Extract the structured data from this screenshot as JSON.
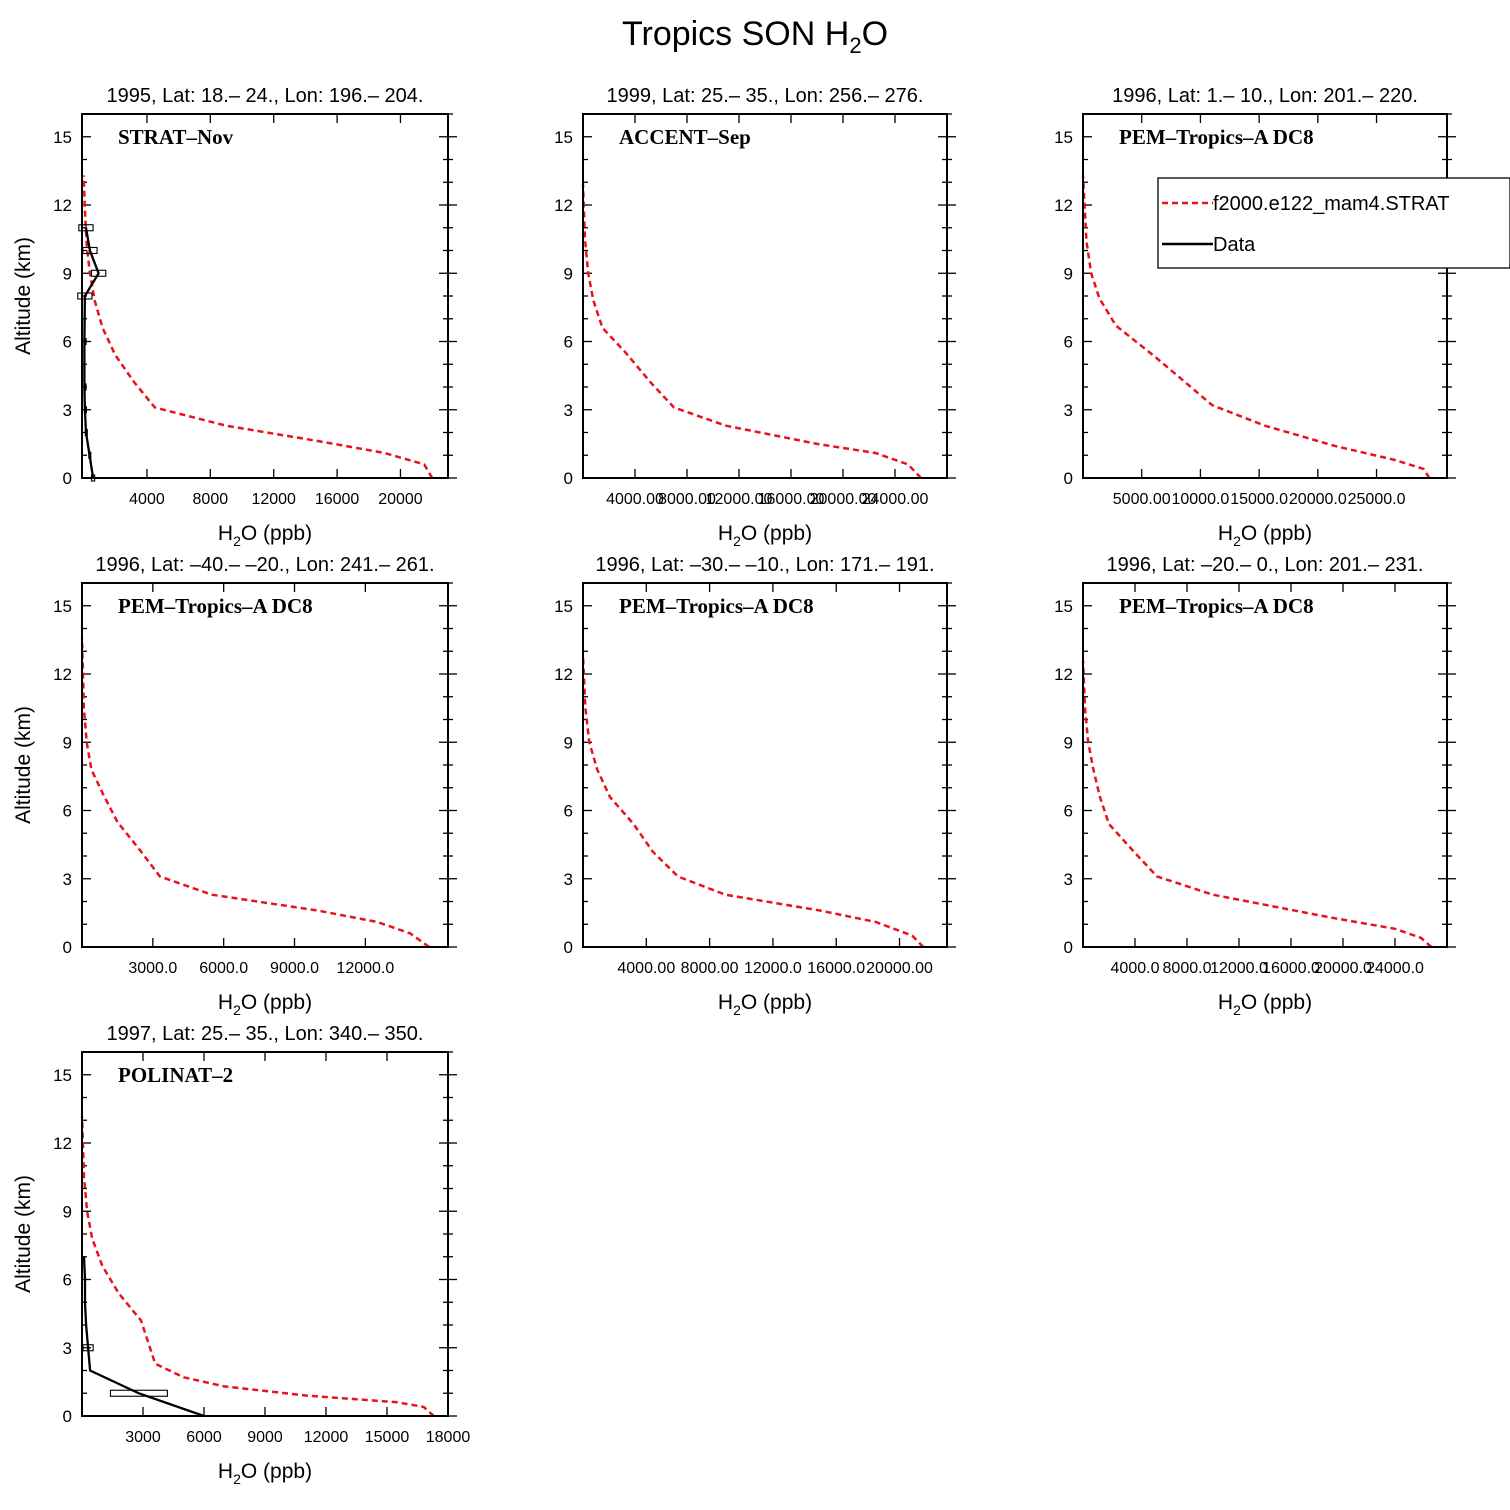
{
  "figure": {
    "title_main": "Tropics SON H",
    "title_sub": "2",
    "title_end": "O"
  },
  "legend": {
    "model_label": "f2000.e122_mam4.STRAT",
    "data_label": "Data",
    "colors": {
      "model": "#e8131a",
      "data": "#000000"
    }
  },
  "chart_data": [
    {
      "type": "line",
      "subtitle": "1995, Lat: 18.– 24., Lon: 196.– 204.",
      "campaign": "STRAT–Nov",
      "xlabel": "H2O (ppb)",
      "ylabel": "Altitude (km)",
      "xlim": [
        -100,
        23000
      ],
      "ylim": [
        0,
        16
      ],
      "xticks": [
        4000,
        8000,
        12000,
        16000,
        20000
      ],
      "xticklabels": [
        "4000",
        "8000",
        "12000",
        "16000",
        "20000"
      ],
      "yticks": [
        0,
        3,
        6,
        9,
        12,
        15
      ],
      "yticklabels": [
        "0",
        "3",
        "6",
        "9",
        "12",
        "15"
      ],
      "series": [
        {
          "name": "f2000.e122_mam4.STRAT",
          "x": [
            22000,
            21500,
            19000,
            15000,
            9000,
            4500,
            3200,
            2000,
            1200,
            700,
            400,
            200,
            100,
            0
          ],
          "y": [
            0,
            0.6,
            1.1,
            1.6,
            2.3,
            3.1,
            4.2,
            5.4,
            6.6,
            7.8,
            9,
            10.2,
            11.5,
            13.3
          ]
        },
        {
          "name": "Data",
          "x": [
            600,
            380,
            150,
            80,
            50,
            50,
            80,
            950,
            400,
            150
          ],
          "y": [
            0,
            1,
            2,
            3,
            4,
            6,
            8,
            9,
            10,
            11
          ],
          "err": [
            200,
            100,
            80,
            50,
            40,
            40,
            900,
            900,
            900,
            900
          ]
        }
      ]
    },
    {
      "type": "line",
      "subtitle": "1999, Lat: 25.– 35., Lon: 256.– 276.",
      "campaign": "ACCENT–Sep",
      "xlabel": "H2O (ppb)",
      "ylabel": "",
      "xlim": [
        0,
        28000
      ],
      "ylim": [
        0,
        16
      ],
      "xticks": [
        4000,
        8000,
        12000,
        16000,
        20000,
        24000
      ],
      "xticklabels": [
        "4000.00",
        "8000.00",
        "12000.00",
        "16000.00",
        "20000.00",
        "24000.00"
      ],
      "yticks": [
        0,
        3,
        6,
        9,
        12,
        15
      ],
      "yticklabels": [
        "0",
        "3",
        "6",
        "9",
        "12",
        "15"
      ],
      "series": [
        {
          "name": "f2000.e122_mam4.STRAT",
          "x": [
            26000,
            25000,
            22500,
            18000,
            11000,
            7000,
            5200,
            3300,
            1500,
            800,
            400,
            150,
            0
          ],
          "y": [
            0,
            0.6,
            1.1,
            1.5,
            2.3,
            3.1,
            4.2,
            5.5,
            6.6,
            7.8,
            9,
            10.5,
            12.9
          ]
        }
      ]
    },
    {
      "type": "line",
      "subtitle": "1996, Lat: 1.– 10., Lon: 201.– 220.",
      "campaign": "PEM–Tropics–A DC8",
      "xlabel": "H2O (ppb)",
      "ylabel": "",
      "xlim": [
        0,
        31000
      ],
      "ylim": [
        0,
        16
      ],
      "xticks": [
        5000,
        10000,
        15000,
        20000,
        25000
      ],
      "xticklabels": [
        "5000.00",
        "10000.0",
        "15000.0",
        "20000.0",
        "25000.0"
      ],
      "yticks": [
        0,
        3,
        6,
        9,
        12,
        15
      ],
      "yticklabels": [
        "0",
        "3",
        "6",
        "9",
        "12",
        "15"
      ],
      "series": [
        {
          "name": "f2000.e122_mam4.STRAT",
          "x": [
            29500,
            29000,
            26500,
            21500,
            15500,
            11000,
            8500,
            6200,
            2800,
            1400,
            700,
            300,
            0
          ],
          "y": [
            0,
            0.4,
            0.8,
            1.4,
            2.3,
            3.2,
            4.3,
            5.3,
            6.7,
            7.9,
            9,
            10.4,
            13.3
          ]
        }
      ]
    },
    {
      "type": "line",
      "subtitle": "1996, Lat: –40.– –20., Lon: 241.– 261.",
      "campaign": "PEM–Tropics–A DC8",
      "xlabel": "H2O (ppb)",
      "ylabel": "Altitude (km)",
      "xlim": [
        0,
        15500
      ],
      "ylim": [
        0,
        16
      ],
      "xticks": [
        3000,
        6000,
        9000,
        12000
      ],
      "xticklabels": [
        "3000.0",
        "6000.0",
        "9000.0",
        "12000.0"
      ],
      "yticks": [
        0,
        3,
        6,
        9,
        12,
        15
      ],
      "yticklabels": [
        "0",
        "3",
        "6",
        "9",
        "12",
        "15"
      ],
      "series": [
        {
          "name": "f2000.e122_mam4.STRAT",
          "x": [
            14700,
            13900,
            12500,
            10000,
            5500,
            3300,
            2500,
            1500,
            900,
            400,
            200,
            80,
            0
          ],
          "y": [
            0,
            0.6,
            1.1,
            1.6,
            2.3,
            3.1,
            4.2,
            5.5,
            6.7,
            7.8,
            9,
            10.5,
            13.6
          ]
        }
      ]
    },
    {
      "type": "line",
      "subtitle": "1996, Lat: –30.– –10., Lon: 171.– 191.",
      "campaign": "PEM–Tropics–A DC8",
      "xlabel": "H2O (ppb)",
      "ylabel": "",
      "xlim": [
        0,
        23000
      ],
      "ylim": [
        0,
        16
      ],
      "xticks": [
        4000,
        8000,
        12000,
        16000,
        20000
      ],
      "xticklabels": [
        "4000.00",
        "8000.00",
        "12000.0",
        "16000.0",
        "20000.00"
      ],
      "yticks": [
        0,
        3,
        6,
        9,
        12,
        15
      ],
      "yticklabels": [
        "0",
        "3",
        "6",
        "9",
        "12",
        "15"
      ],
      "series": [
        {
          "name": "f2000.e122_mam4.STRAT",
          "x": [
            21500,
            20800,
            18500,
            15000,
            9000,
            6000,
            4400,
            3200,
            1700,
            900,
            400,
            150,
            0
          ],
          "y": [
            0,
            0.5,
            1.1,
            1.6,
            2.3,
            3.1,
            4.2,
            5.4,
            6.6,
            7.8,
            9,
            10.5,
            12.8
          ]
        }
      ]
    },
    {
      "type": "line",
      "subtitle": "1996, Lat: –20.– 0., Lon: 201.– 231.",
      "campaign": "PEM–Tropics–A DC8",
      "xlabel": "H2O (ppb)",
      "ylabel": "",
      "xlim": [
        0,
        28000
      ],
      "ylim": [
        0,
        16
      ],
      "xticks": [
        4000,
        8000,
        12000,
        16000,
        20000,
        24000
      ],
      "xticklabels": [
        "4000.0",
        "8000.0",
        "12000.0",
        "16000.0",
        "20000.0",
        "24000.0"
      ],
      "yticks": [
        0,
        3,
        6,
        9,
        12,
        15
      ],
      "yticklabels": [
        "0",
        "3",
        "6",
        "9",
        "12",
        "15"
      ],
      "series": [
        {
          "name": "f2000.e122_mam4.STRAT",
          "x": [
            26800,
            26000,
            24000,
            19000,
            10000,
            5700,
            3900,
            2000,
            1300,
            800,
            400,
            150,
            0
          ],
          "y": [
            0,
            0.4,
            0.8,
            1.3,
            2.3,
            3.1,
            4.2,
            5.4,
            6.6,
            7.8,
            9,
            10.5,
            12.6
          ]
        }
      ]
    },
    {
      "type": "line",
      "subtitle": "1997, Lat: 25.– 35., Lon: 340.– 350.",
      "campaign": "POLINAT–2",
      "xlabel": "H2O (ppb)",
      "ylabel": "Altitude (km)",
      "xlim": [
        0,
        18000
      ],
      "ylim": [
        0,
        16
      ],
      "xticks": [
        3000,
        6000,
        9000,
        12000,
        15000,
        18000
      ],
      "xticklabels": [
        "3000",
        "6000",
        "9000",
        "12000",
        "15000",
        "18000"
      ],
      "yticks": [
        0,
        3,
        6,
        9,
        12,
        15
      ],
      "yticklabels": [
        "0",
        "3",
        "6",
        "9",
        "12",
        "15"
      ],
      "series": [
        {
          "name": "f2000.e122_mam4.STRAT",
          "x": [
            17300,
            16800,
            15500,
            11000,
            7000,
            5000,
            3600,
            2900,
            1800,
            1000,
            500,
            250,
            100,
            0
          ],
          "y": [
            0,
            0.4,
            0.6,
            0.9,
            1.3,
            1.7,
            2.3,
            4.2,
            5.4,
            6.6,
            7.8,
            9,
            10.5,
            13.2
          ]
        },
        {
          "name": "Data",
          "x": [
            6000,
            2800,
            400,
            300,
            200,
            150,
            150,
            100
          ],
          "y": [
            0,
            1,
            2,
            3,
            4,
            5,
            6,
            7
          ],
          "err": [
            0,
            2800,
            0,
            500,
            0,
            0,
            0,
            0
          ]
        }
      ]
    }
  ]
}
